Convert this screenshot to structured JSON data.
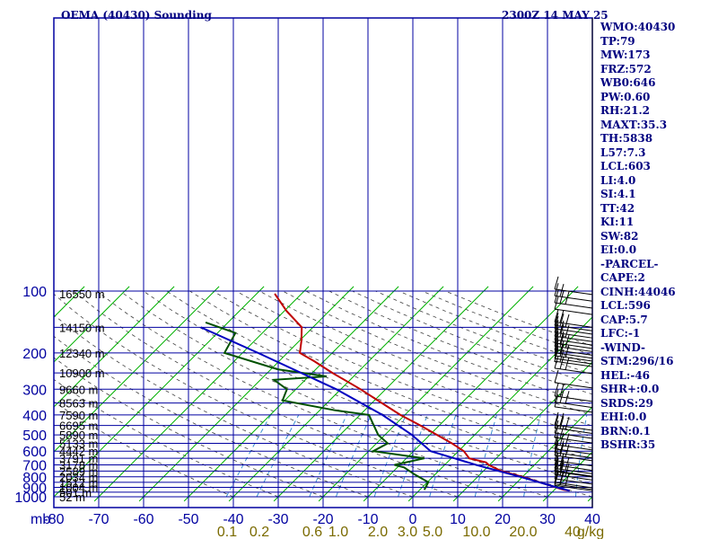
{
  "header": {
    "title": "OEMA (40430) Sounding",
    "date": "2300Z 14 MAY 25"
  },
  "colors": {
    "frame": "#0000a0",
    "temperature": "#c00000",
    "dewpoint": "#005000",
    "parcel": "#0000c0",
    "isotherm_skew": "#00b000",
    "dry_adiabat": "#404040",
    "mixing_ratio": "#3a8fd0",
    "stats_text": "#000080",
    "mix_label": "#7a6a00"
  },
  "stats": [
    "WMO:40430",
    "TP:79",
    "MW:173",
    "FRZ:572",
    "WB0:646",
    "PW:0.60",
    "RH:21.2",
    "MAXT:35.3",
    "TH:5838",
    "L57:7.3",
    "LCL:603",
    "LI:4.0",
    "SI:4.1",
    "TT:42",
    "KI:11",
    "SW:82",
    "EI:0.0",
    "-PARCEL-",
    "CAPE:2",
    "CINH:44046",
    "LCL:596",
    "CAP:5.7",
    "LFC:-1",
    "-WIND-",
    "STM:296/16",
    "HEL:-46",
    "SHR+:0.0",
    "SRDS:29",
    "EHI:0.0",
    "BRN:0.1",
    "BSHR:35"
  ],
  "chart_data": {
    "type": "line",
    "chart_kind": "skew-T log-P sounding",
    "y_axis": {
      "label": "mb",
      "ticks": [
        100,
        200,
        300,
        400,
        500,
        600,
        700,
        800,
        900,
        1000
      ],
      "range": [
        1000,
        100
      ],
      "scale": "log"
    },
    "x_axis": {
      "ticks": [
        -80,
        -70,
        -60,
        -50,
        -40,
        -30,
        -20,
        -10,
        0,
        10,
        20,
        30,
        40
      ],
      "tick_labels": [
        "-80",
        "-70",
        "-60",
        "-50",
        "-40",
        "-30",
        "-20",
        "-10",
        "0",
        "10",
        "20",
        "30",
        "40"
      ],
      "range": [
        -80,
        40
      ],
      "skewed": true
    },
    "height_labels": [
      {
        "p": 100,
        "label": "16550 m"
      },
      {
        "p": 150,
        "label": "14150 m"
      },
      {
        "p": 200,
        "label": "12340 m"
      },
      {
        "p": 250,
        "label": "10900 m"
      },
      {
        "p": 300,
        "label": "9660 m"
      },
      {
        "p": 350,
        "label": "8563 m"
      },
      {
        "p": 400,
        "label": "7590 m"
      },
      {
        "p": 450,
        "label": "6695 m"
      },
      {
        "p": 500,
        "label": "5890 m"
      },
      {
        "p": 550,
        "label": "5133 m"
      },
      {
        "p": 600,
        "label": "4442 m"
      },
      {
        "p": 650,
        "label": "3791 m"
      },
      {
        "p": 700,
        "label": "3178 m"
      },
      {
        "p": 750,
        "label": "2589 m"
      },
      {
        "p": 800,
        "label": "2034 m"
      },
      {
        "p": 850,
        "label": "1512 m"
      },
      {
        "p": 900,
        "label": "1004 m"
      },
      {
        "p": 950,
        "label": "501 m"
      },
      {
        "p": 1000,
        "label": "52 m"
      }
    ],
    "mixing_ratio_labels": [
      "0.1",
      "0.2",
      "0.6",
      "1.0",
      "2.0",
      "3.0",
      "5.0",
      "10.0",
      "20.0",
      "40",
      "g/kg"
    ],
    "series": [
      {
        "role": "temperature",
        "points": [
          {
            "p": 935,
            "t": 33.6
          },
          {
            "p": 925,
            "t": 32.0
          },
          {
            "p": 850,
            "t": 25.0
          },
          {
            "p": 800,
            "t": 20.0
          },
          {
            "p": 750,
            "t": 14.0
          },
          {
            "p": 700,
            "t": 9.8
          },
          {
            "p": 680,
            "t": 8.6
          },
          {
            "p": 650,
            "t": 4.0
          },
          {
            "p": 600,
            "t": 1.2
          },
          {
            "p": 550,
            "t": -3.2
          },
          {
            "p": 500,
            "t": -8.4
          },
          {
            "p": 450,
            "t": -14.2
          },
          {
            "p": 400,
            "t": -21.0
          },
          {
            "p": 350,
            "t": -27.8
          },
          {
            "p": 300,
            "t": -35.6
          },
          {
            "p": 250,
            "t": -45.5
          },
          {
            "p": 220,
            "t": -52.0
          },
          {
            "p": 200,
            "t": -57.2
          },
          {
            "p": 175,
            "t": -59.5
          },
          {
            "p": 150,
            "t": -62.5
          },
          {
            "p": 125,
            "t": -69.5
          },
          {
            "p": 103,
            "t": -76.0
          }
        ]
      },
      {
        "role": "dewpoint",
        "points": [
          {
            "p": 925,
            "t": 1.0
          },
          {
            "p": 850,
            "t": 0.2
          },
          {
            "p": 780,
            "t": -4.5
          },
          {
            "p": 720,
            "t": -8.5
          },
          {
            "p": 700,
            "t": -11.2
          },
          {
            "p": 650,
            "t": -6.0
          },
          {
            "p": 600,
            "t": -19.0
          },
          {
            "p": 550,
            "t": -17.5
          },
          {
            "p": 500,
            "t": -21.5
          },
          {
            "p": 400,
            "t": -28.0
          },
          {
            "p": 380,
            "t": -36.5
          },
          {
            "p": 340,
            "t": -50.5
          },
          {
            "p": 300,
            "t": -52.0
          },
          {
            "p": 270,
            "t": -57.0
          },
          {
            "p": 260,
            "t": -46.0
          },
          {
            "p": 240,
            "t": -58.5
          },
          {
            "p": 200,
            "t": -74.0
          },
          {
            "p": 160,
            "t": -76.0
          },
          {
            "p": 142,
            "t": -85.0
          }
        ]
      },
      {
        "role": "parcel",
        "points": [
          {
            "p": 935,
            "t": 33.6
          },
          {
            "p": 900,
            "t": 30.0
          },
          {
            "p": 800,
            "t": 19.5
          },
          {
            "p": 700,
            "t": 7.0
          },
          {
            "p": 600,
            "t": -6.2
          },
          {
            "p": 500,
            "t": -14.0
          },
          {
            "p": 400,
            "t": -25.0
          },
          {
            "p": 300,
            "t": -41.0
          },
          {
            "p": 200,
            "t": -66.5
          },
          {
            "p": 150,
            "t": -85.0
          }
        ]
      }
    ],
    "wind_barbs_pressures": [
      104,
      112,
      121,
      130,
      150,
      156,
      162,
      169,
      176,
      183,
      190,
      197,
      205,
      212,
      219,
      226,
      233,
      252,
      296,
      344,
      368,
      388,
      475,
      492,
      520,
      548,
      592,
      621,
      647,
      668,
      708,
      744,
      773,
      794,
      801,
      829,
      868,
      904,
      921,
      935
    ]
  }
}
